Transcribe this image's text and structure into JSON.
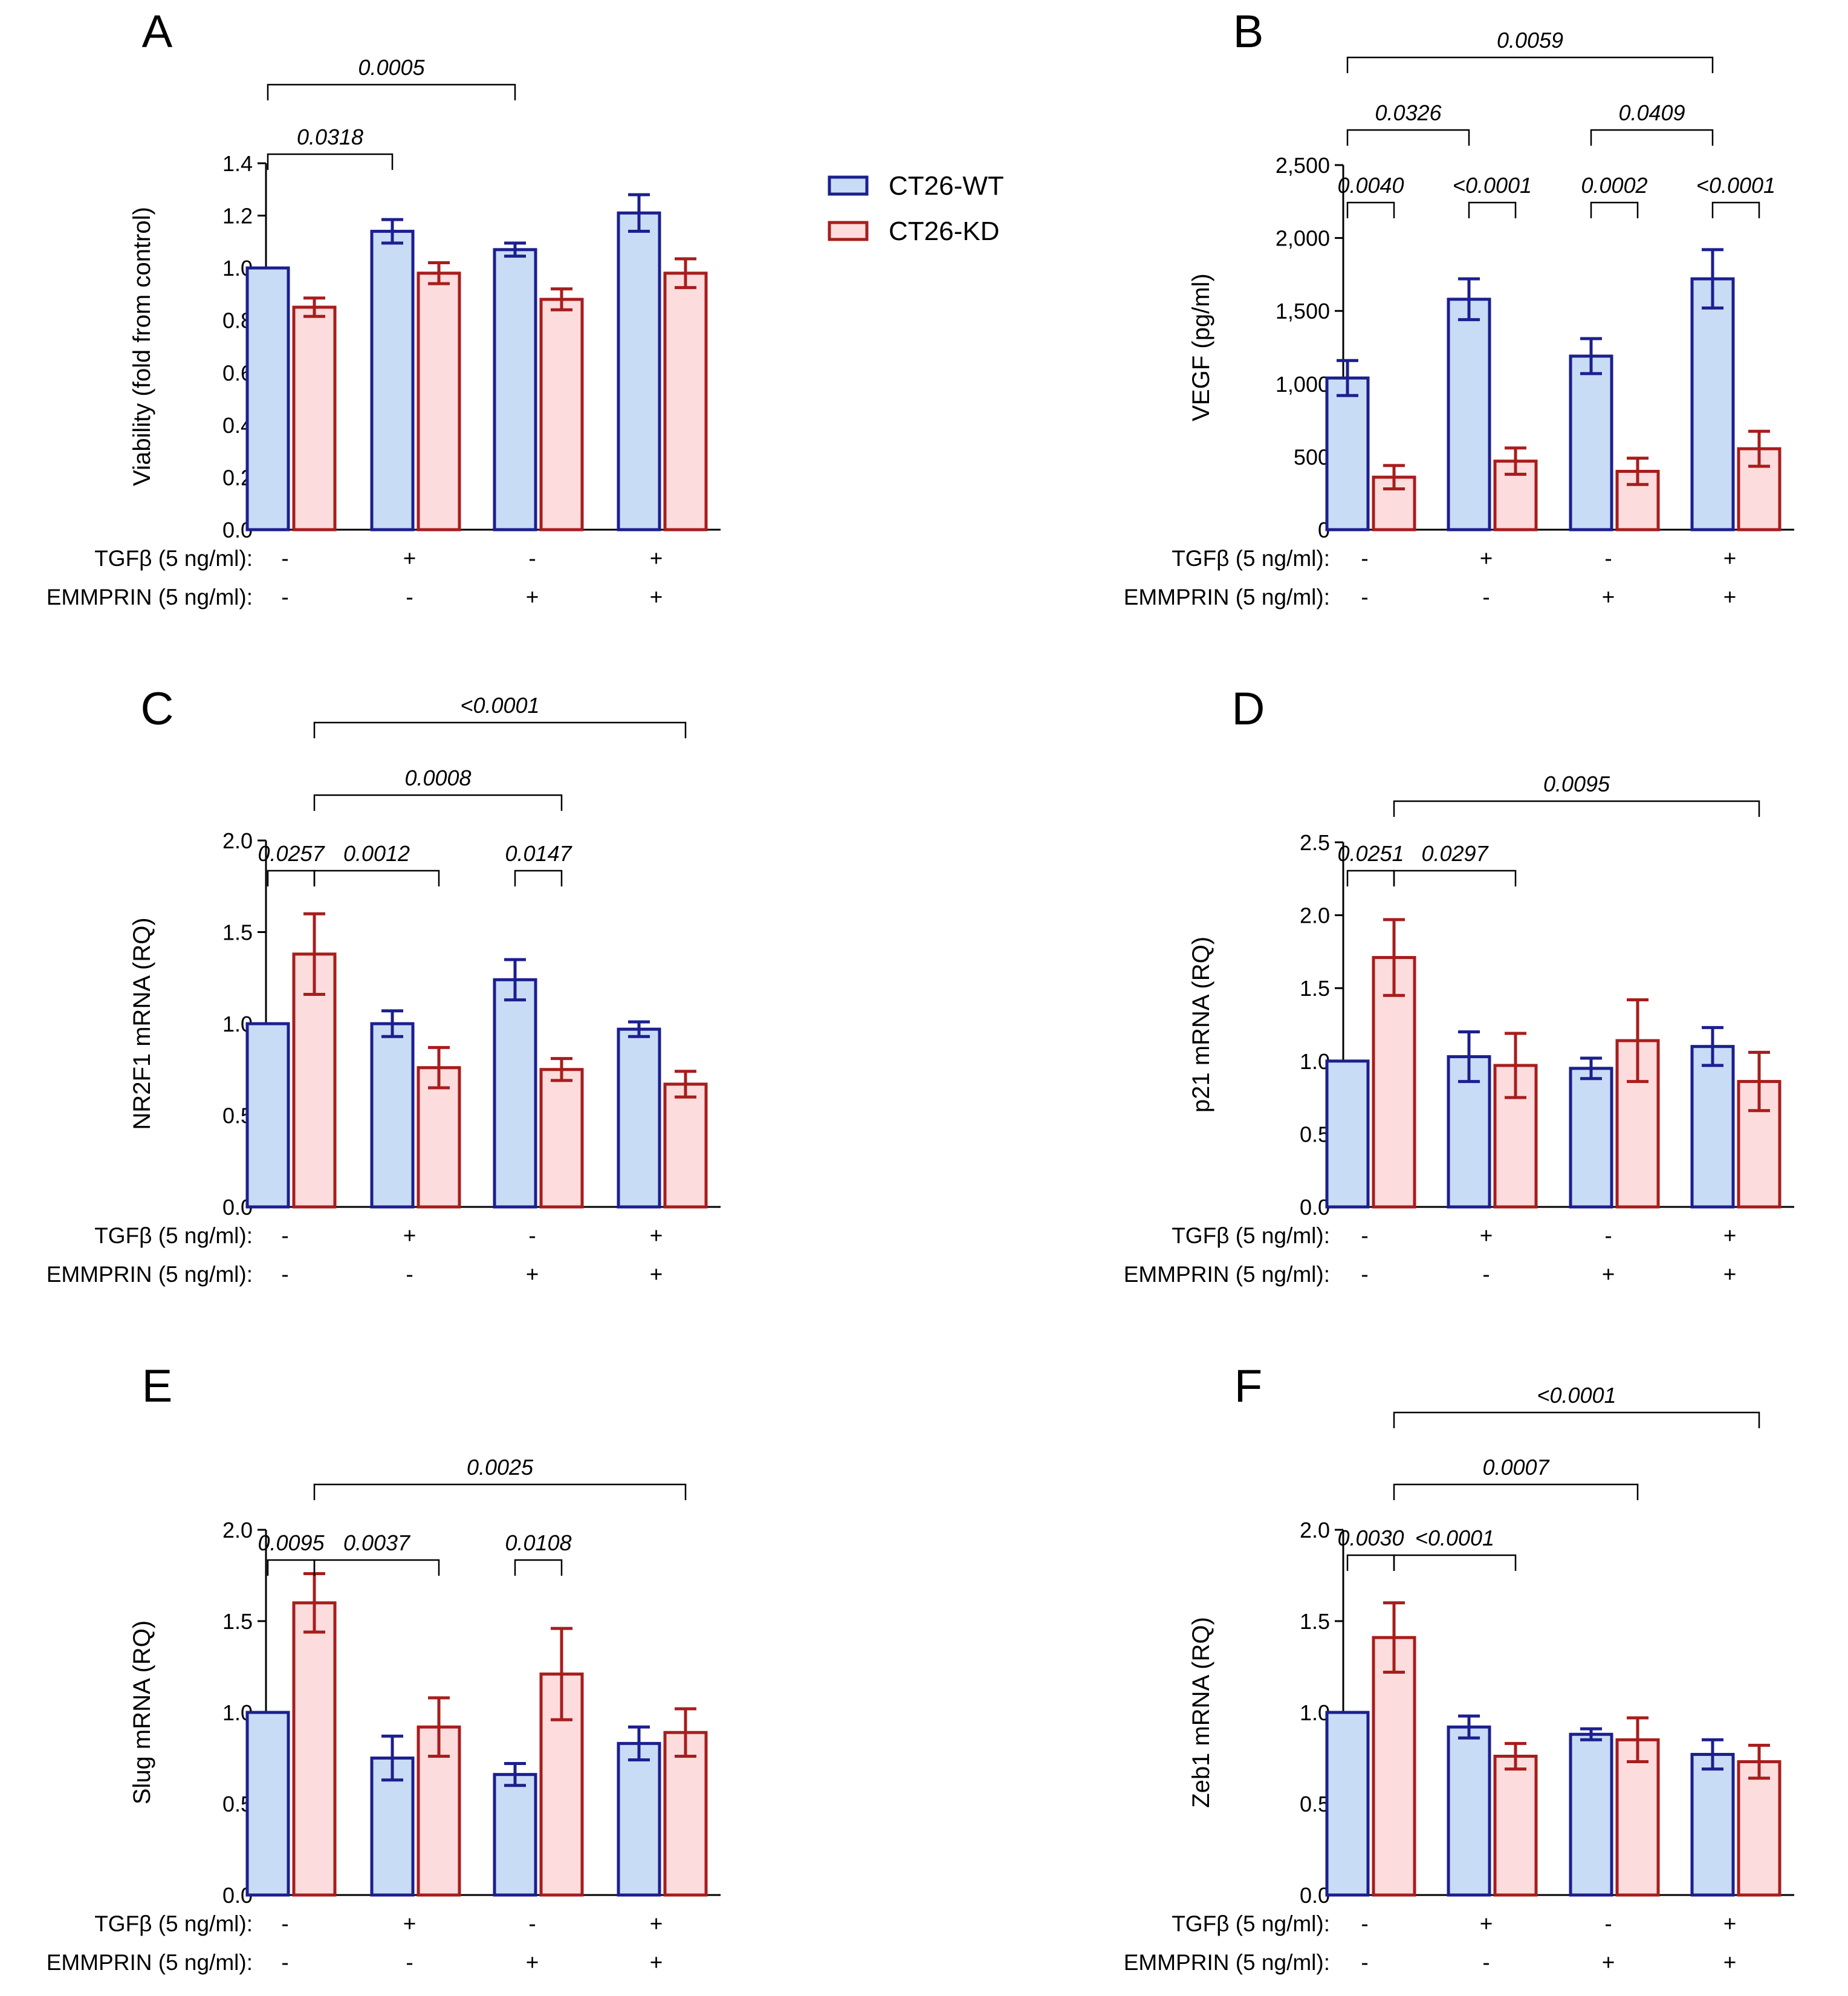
{
  "colors": {
    "wt_stroke": "#1c1f8f",
    "wt_fill": "#c8dcf5",
    "kd_stroke": "#a81d1d",
    "kd_fill": "#fcdcdc",
    "axis": "#000000"
  },
  "legend": [
    {
      "label": "CT26-WT",
      "series": "wt"
    },
    {
      "label": "CT26-KD",
      "series": "kd"
    }
  ],
  "conditions": {
    "tgf_label": "TGFβ (5 ng/ml):",
    "emm_label": "EMMPRIN (5 ng/ml):",
    "tgf": [
      "-",
      "+",
      "-",
      "+"
    ],
    "emm": [
      "-",
      "-",
      "+",
      "+"
    ]
  },
  "chart_data": [
    {
      "panel": "A",
      "type": "bar",
      "ylabel": "Viability (fold from control)",
      "ylim": [
        0,
        1.4
      ],
      "yticks": [
        "0.0",
        "0.2",
        "0.4",
        "0.6",
        "0.8",
        "1.0",
        "1.2",
        "1.4"
      ],
      "series": [
        {
          "name": "CT26-WT",
          "values": [
            1.0,
            1.14,
            1.07,
            1.21
          ],
          "errors": [
            0,
            0.045,
            0.025,
            0.07
          ]
        },
        {
          "name": "CT26-KD",
          "values": [
            0.85,
            0.98,
            0.88,
            0.98
          ],
          "errors": [
            0.035,
            0.04,
            0.04,
            0.055
          ]
        }
      ],
      "annotations": [
        {
          "text": "0.0005",
          "from": [
            0,
            0
          ],
          "to": [
            2,
            0
          ],
          "level": 2
        },
        {
          "text": "0.0318",
          "from": [
            0,
            0
          ],
          "to": [
            1,
            0
          ],
          "level": 1
        }
      ]
    },
    {
      "panel": "B",
      "type": "bar",
      "ylabel": "VEGF (pg/ml)",
      "ylim": [
        0,
        2500
      ],
      "yticks": [
        "0",
        "500",
        "1,000",
        "1,500",
        "2,000",
        "2,500"
      ],
      "series": [
        {
          "name": "CT26-WT",
          "values": [
            1040,
            1580,
            1190,
            1720
          ],
          "errors": [
            120,
            140,
            120,
            200
          ]
        },
        {
          "name": "CT26-KD",
          "values": [
            360,
            470,
            400,
            555
          ],
          "errors": [
            80,
            90,
            90,
            120
          ]
        }
      ],
      "annotations": [
        {
          "text": "0.0059",
          "from": [
            0,
            0
          ],
          "to": [
            3,
            0
          ],
          "level": 3
        },
        {
          "text": "0.0326",
          "from": [
            0,
            0
          ],
          "to": [
            1,
            0
          ],
          "level": 2
        },
        {
          "text": "0.0409",
          "from": [
            2,
            0
          ],
          "to": [
            3,
            0
          ],
          "level": 2
        },
        {
          "text": "0.0040",
          "from": [
            0,
            0
          ],
          "to": [
            0,
            1
          ],
          "level": 1
        },
        {
          "text": "<0.0001",
          "from": [
            1,
            0
          ],
          "to": [
            1,
            1
          ],
          "level": 1
        },
        {
          "text": "0.0002",
          "from": [
            2,
            0
          ],
          "to": [
            2,
            1
          ],
          "level": 1
        },
        {
          "text": "<0.0001",
          "from": [
            3,
            0
          ],
          "to": [
            3,
            1
          ],
          "level": 1
        }
      ]
    },
    {
      "panel": "C",
      "type": "bar",
      "ylabel": "NR2F1 mRNA (RQ)",
      "ylim": [
        0,
        2.0
      ],
      "yticks": [
        "0.0",
        "0.5",
        "1.0",
        "1.5",
        "2.0"
      ],
      "series": [
        {
          "name": "CT26-WT",
          "values": [
            1.0,
            1.0,
            1.24,
            0.97
          ],
          "errors": [
            0,
            0.07,
            0.11,
            0.04
          ]
        },
        {
          "name": "CT26-KD",
          "values": [
            1.38,
            0.76,
            0.75,
            0.67
          ],
          "errors": [
            0.22,
            0.11,
            0.06,
            0.07
          ]
        }
      ],
      "annotations": [
        {
          "text": "<0.0001",
          "from": [
            0,
            1
          ],
          "to": [
            3,
            1
          ],
          "level": 4
        },
        {
          "text": "0.0008",
          "from": [
            0,
            1
          ],
          "to": [
            2,
            1
          ],
          "level": 3
        },
        {
          "text": "0.0257",
          "from": [
            0,
            0
          ],
          "to": [
            0,
            1
          ],
          "level": 1
        },
        {
          "text": "0.0012",
          "from": [
            0,
            1
          ],
          "to": [
            1,
            1
          ],
          "level": 1
        },
        {
          "text": "0.0147",
          "from": [
            2,
            0
          ],
          "to": [
            2,
            1
          ],
          "level": 1
        }
      ]
    },
    {
      "panel": "D",
      "type": "bar",
      "ylabel": "p21 mRNA (RQ)",
      "ylim": [
        0,
        2.5
      ],
      "yticks": [
        "0.0",
        "0.5",
        "1.0",
        "1.5",
        "2.0",
        "2.5"
      ],
      "series": [
        {
          "name": "CT26-WT",
          "values": [
            1.0,
            1.03,
            0.95,
            1.1
          ],
          "errors": [
            0,
            0.17,
            0.07,
            0.13
          ]
        },
        {
          "name": "CT26-KD",
          "values": [
            1.71,
            0.97,
            1.14,
            0.86
          ],
          "errors": [
            0.26,
            0.22,
            0.28,
            0.2
          ]
        }
      ],
      "annotations": [
        {
          "text": "0.0095",
          "from": [
            0,
            1
          ],
          "to": [
            3,
            1
          ],
          "level": 2
        },
        {
          "text": "0.0251",
          "from": [
            0,
            0
          ],
          "to": [
            0,
            1
          ],
          "level": 1
        },
        {
          "text": "0.0297",
          "from": [
            0,
            1
          ],
          "to": [
            1,
            1
          ],
          "level": 1
        }
      ]
    },
    {
      "panel": "E",
      "type": "bar",
      "ylabel": "Slug mRNA (RQ)",
      "ylim": [
        0,
        2.0
      ],
      "yticks": [
        "0.0",
        "0.5",
        "1.0",
        "1.5",
        "2.0"
      ],
      "series": [
        {
          "name": "CT26-WT",
          "values": [
            1.0,
            0.75,
            0.66,
            0.83
          ],
          "errors": [
            0,
            0.12,
            0.06,
            0.09
          ]
        },
        {
          "name": "CT26-KD",
          "values": [
            1.6,
            0.92,
            1.21,
            0.89
          ],
          "errors": [
            0.16,
            0.16,
            0.25,
            0.13
          ]
        }
      ],
      "annotations": [
        {
          "text": "0.0025",
          "from": [
            0,
            1
          ],
          "to": [
            3,
            1
          ],
          "level": 3
        },
        {
          "text": "0.0095",
          "from": [
            0,
            0
          ],
          "to": [
            0,
            1
          ],
          "level": 1
        },
        {
          "text": "0.0037",
          "from": [
            0,
            1
          ],
          "to": [
            1,
            1
          ],
          "level": 1
        },
        {
          "text": "0.0108",
          "from": [
            2,
            0
          ],
          "to": [
            2,
            1
          ],
          "level": 1
        }
      ]
    },
    {
      "panel": "F",
      "type": "bar",
      "ylabel": "Zeb1 mRNA (RQ)",
      "ylim": [
        0,
        2.0
      ],
      "yticks": [
        "0.0",
        "0.5",
        "1.0",
        "1.5",
        "2.0"
      ],
      "series": [
        {
          "name": "CT26-WT",
          "values": [
            1.0,
            0.92,
            0.88,
            0.77
          ],
          "errors": [
            0,
            0.06,
            0.03,
            0.08
          ]
        },
        {
          "name": "CT26-KD",
          "values": [
            1.41,
            0.76,
            0.85,
            0.73
          ],
          "errors": [
            0.19,
            0.07,
            0.12,
            0.09
          ]
        }
      ],
      "annotations": [
        {
          "text": "<0.0001",
          "from": [
            0,
            1
          ],
          "to": [
            3,
            1
          ],
          "level": 4
        },
        {
          "text": "0.0007",
          "from": [
            0,
            1
          ],
          "to": [
            2,
            1
          ],
          "level": 3
        },
        {
          "text": "0.0030",
          "from": [
            0,
            0
          ],
          "to": [
            0,
            1
          ],
          "level": 1
        },
        {
          "text": "<0.0001",
          "from": [
            0,
            1
          ],
          "to": [
            1,
            1
          ],
          "level": 1
        }
      ]
    }
  ]
}
